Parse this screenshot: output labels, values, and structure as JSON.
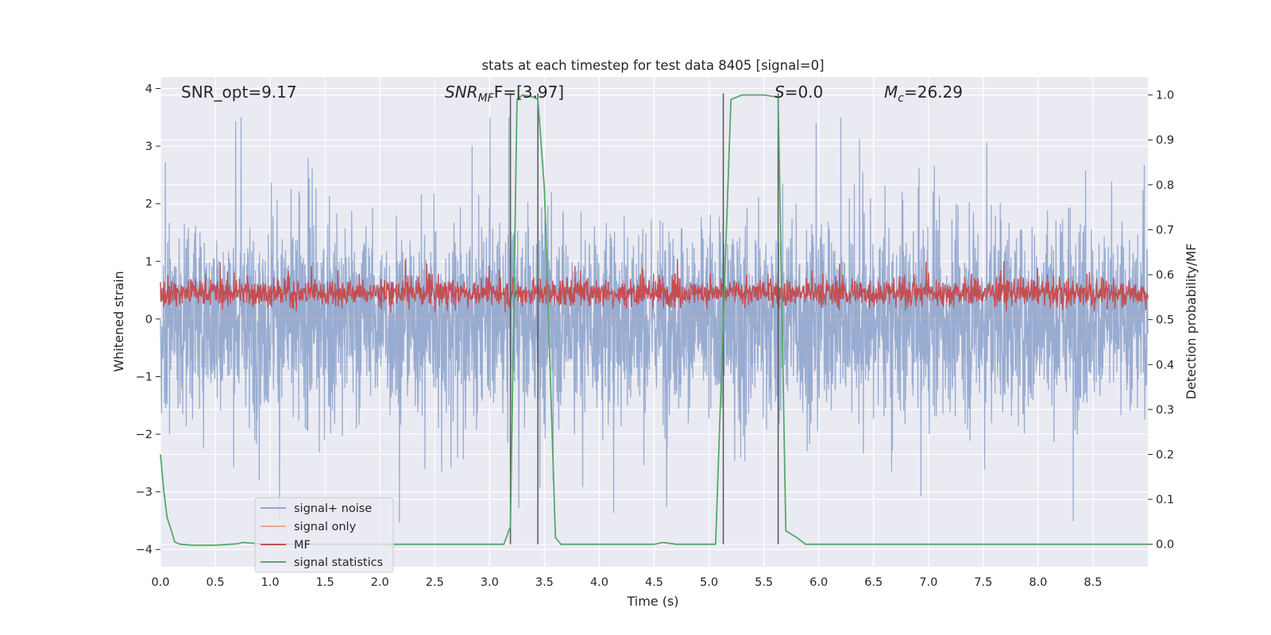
{
  "chart_data": {
    "type": "line",
    "title": "stats at each timestep for test data 8405 [signal=0]",
    "xlabel": "Time (s)",
    "ylabel": "Whitened strain",
    "y2label": "Detection probability/MF",
    "xlim": [
      0.0,
      9.0
    ],
    "ylim": [
      -4.3,
      4.2
    ],
    "y2lim": [
      -0.05,
      1.04
    ],
    "xticks": [
      "0.0",
      "0.5",
      "1.0",
      "1.5",
      "2.0",
      "2.5",
      "3.0",
      "3.5",
      "4.0",
      "4.5",
      "5.0",
      "5.5",
      "6.0",
      "6.5",
      "7.0",
      "7.5",
      "8.0",
      "8.5"
    ],
    "yticks": [
      "−4",
      "−3",
      "−2",
      "−1",
      "0",
      "1",
      "2",
      "3",
      "4"
    ],
    "y2ticks": [
      "0.0",
      "0.1",
      "0.2",
      "0.3",
      "0.4",
      "0.5",
      "0.6",
      "0.7",
      "0.8",
      "0.9",
      "1.0"
    ],
    "grid": true,
    "legend_position": "lower-left",
    "annotations": {
      "snr_opt": "SNR_opt=9.17",
      "snr_mf_main": "SNR",
      "snr_mf_sub": "MF",
      "snr_mf_rest": "F=[3.97]",
      "s_main": "S",
      "s_rest": "=0.0",
      "mc_main": "M",
      "mc_sub": "c",
      "mc_rest": "=26.29"
    },
    "vertical_lines_x": [
      3.19,
      3.44,
      5.13,
      5.63
    ],
    "series": [
      {
        "name": "signal+ noise",
        "color": "#94a9cf",
        "axis": "left",
        "description_values": {
          "core_amplitude": 1.5,
          "typical_peak": 2.5,
          "max_peak": 3.5,
          "min_peak": -4.0
        }
      },
      {
        "name": "signal only",
        "color": "#e8a98f",
        "axis": "left",
        "values_constant": 0.0
      },
      {
        "name": "MF",
        "color": "#c44e52",
        "axis": "right",
        "band": [
          0.5,
          0.62
        ]
      },
      {
        "name": "signal statistics",
        "color": "#55a868",
        "axis": "right",
        "x": [
          0.0,
          0.03,
          0.06,
          0.1,
          0.13,
          0.18,
          0.3,
          0.5,
          0.7,
          0.75,
          0.9,
          1.0,
          1.5,
          2.0,
          2.5,
          3.0,
          3.13,
          3.19,
          3.25,
          3.3,
          3.4,
          3.44,
          3.5,
          3.6,
          3.65,
          4.0,
          4.5,
          4.58,
          4.7,
          5.0,
          5.06,
          5.13,
          5.2,
          5.3,
          5.5,
          5.63,
          5.7,
          5.8,
          5.88,
          6.0,
          7.0,
          8.0,
          9.0
        ],
        "y": [
          0.2,
          0.12,
          0.06,
          0.03,
          0.005,
          0.0,
          -0.002,
          -0.002,
          0.001,
          0.004,
          0.001,
          0.0,
          0.0,
          0.0,
          0.0,
          0.0,
          0.0,
          0.04,
          0.99,
          1.0,
          0.995,
          0.99,
          0.79,
          0.015,
          0.0,
          0.0,
          0.0,
          0.004,
          0.0,
          0.0,
          0.0,
          0.5,
          0.99,
          1.0,
          1.0,
          0.995,
          0.03,
          0.015,
          0.0,
          0.0,
          0.0,
          0.0,
          0.0
        ]
      }
    ]
  }
}
